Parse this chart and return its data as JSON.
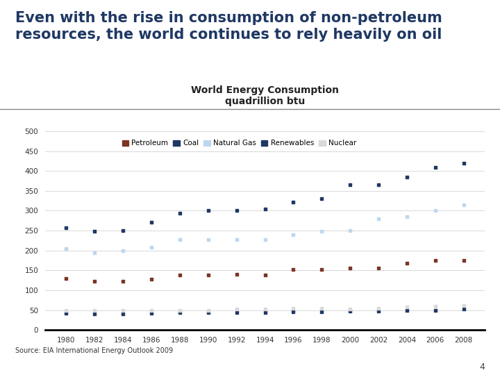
{
  "title_main": "Even with the rise in consumption of non-petroleum\nresources, the world continues to rely heavily on oil",
  "chart_title": "World Energy Consumption",
  "chart_subtitle": "quadrillion btu",
  "source": "Source: EIA International Energy Outlook 2009",
  "page_number": "4",
  "years": [
    1980,
    1982,
    1984,
    1986,
    1988,
    1990,
    1992,
    1994,
    1996,
    1998,
    2000,
    2002,
    2004,
    2006,
    2008
  ],
  "petroleum": [
    130,
    122,
    122,
    128,
    138,
    138,
    140,
    138,
    152,
    152,
    155,
    155,
    168,
    175,
    175
  ],
  "coal": [
    258,
    248,
    250,
    272,
    294,
    300,
    300,
    305,
    322,
    330,
    365,
    365,
    385,
    410,
    420
  ],
  "natural_gas": [
    205,
    195,
    200,
    208,
    228,
    228,
    228,
    228,
    240,
    248,
    250,
    280,
    285,
    300,
    315
  ],
  "renewables": [
    42,
    40,
    40,
    42,
    44,
    44,
    44,
    44,
    46,
    46,
    48,
    48,
    50,
    50,
    52
  ],
  "nuclear": [
    50,
    50,
    50,
    50,
    50,
    50,
    52,
    52,
    54,
    54,
    52,
    55,
    58,
    60,
    62
  ],
  "legend_colors": {
    "Petroleum": "#7B3525",
    "Coal": "#1F3864",
    "Natural Gas": "#BDD7EE",
    "Renewables": "#1F3864",
    "Nuclear": "#D9D9D9"
  },
  "dot_colors": {
    "Petroleum": "#7B3525",
    "Coal": "#1F3864",
    "Natural Gas": "#BDD7EE",
    "Renewables": "#1F3864",
    "Nuclear": "#D9D9D9"
  },
  "background_color": "#FFFFFF",
  "ylim": [
    0,
    500
  ],
  "yticks": [
    0,
    50,
    100,
    150,
    200,
    250,
    300,
    350,
    400,
    450,
    500
  ],
  "xticks": [
    1980,
    1982,
    1984,
    1986,
    1988,
    1990,
    1992,
    1994,
    1996,
    1998,
    2000,
    2002,
    2004,
    2006,
    2008
  ],
  "dot_size": 7,
  "header_text_color": "#1F3864",
  "grid_color": "#D9D9D9",
  "separator_color": "#888888"
}
